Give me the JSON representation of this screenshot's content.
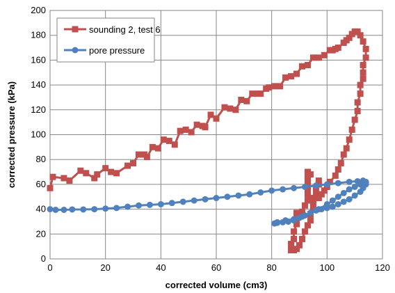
{
  "chart_data": {
    "type": "scatter",
    "title": "",
    "xlabel": "corrected volume (cm3)",
    "ylabel": "corrected pressure (kPa)",
    "xlim": [
      0,
      120
    ],
    "ylim": [
      0,
      200
    ],
    "xticks": [
      0,
      20,
      40,
      60,
      80,
      100,
      120
    ],
    "yticks": [
      0,
      20,
      40,
      60,
      80,
      100,
      120,
      140,
      160,
      180,
      200
    ],
    "grid": true,
    "legend_position": "top-left",
    "series": [
      {
        "name": "sounding 2, test 6",
        "color": "#C0504D",
        "marker": "square",
        "line": true,
        "points": [
          [
            0,
            57
          ],
          [
            1,
            66
          ],
          [
            5,
            65
          ],
          [
            7,
            63
          ],
          [
            11,
            71
          ],
          [
            13,
            69
          ],
          [
            16,
            65
          ],
          [
            17,
            68
          ],
          [
            20,
            73
          ],
          [
            22,
            70
          ],
          [
            24,
            69
          ],
          [
            28,
            75
          ],
          [
            30,
            77
          ],
          [
            32,
            84
          ],
          [
            34,
            84
          ],
          [
            35,
            82
          ],
          [
            37,
            90
          ],
          [
            39,
            89
          ],
          [
            41,
            96
          ],
          [
            43,
            95
          ],
          [
            45,
            92
          ],
          [
            47,
            103
          ],
          [
            49,
            104
          ],
          [
            51,
            102
          ],
          [
            53,
            108
          ],
          [
            55,
            107
          ],
          [
            56,
            106
          ],
          [
            58,
            116
          ],
          [
            60,
            113
          ],
          [
            63,
            122
          ],
          [
            65,
            121
          ],
          [
            67,
            120
          ],
          [
            69,
            128
          ],
          [
            71,
            127
          ],
          [
            73,
            133
          ],
          [
            75,
            133
          ],
          [
            76,
            133
          ],
          [
            78,
            137
          ],
          [
            79,
            138
          ],
          [
            81,
            139
          ],
          [
            83,
            139
          ],
          [
            85,
            146
          ],
          [
            87,
            147
          ],
          [
            89,
            149
          ],
          [
            91,
            155
          ],
          [
            93,
            156
          ],
          [
            95,
            162
          ],
          [
            97,
            162
          ],
          [
            99,
            164
          ],
          [
            101,
            168
          ],
          [
            102,
            168
          ],
          [
            103,
            169
          ],
          [
            104,
            170
          ],
          [
            106,
            174
          ],
          [
            107,
            176
          ],
          [
            108,
            178
          ],
          [
            109,
            181
          ],
          [
            110,
            183
          ],
          [
            111,
            183
          ],
          [
            112,
            180
          ],
          [
            113,
            175
          ],
          [
            114,
            169
          ],
          [
            114,
            162
          ],
          [
            113,
            156
          ],
          [
            113,
            150
          ],
          [
            113,
            145
          ],
          [
            112,
            140
          ],
          [
            112,
            133
          ],
          [
            111,
            126
          ],
          [
            111,
            119
          ],
          [
            110,
            112
          ],
          [
            109,
            104
          ],
          [
            108,
            96
          ],
          [
            107,
            89
          ],
          [
            106,
            84
          ],
          [
            105,
            77
          ],
          [
            104,
            72
          ],
          [
            103,
            67
          ],
          [
            101,
            62
          ],
          [
            100,
            58
          ],
          [
            99,
            55
          ],
          [
            98,
            52
          ],
          [
            97,
            49
          ],
          [
            95,
            47
          ],
          [
            94,
            49
          ],
          [
            93,
            55
          ],
          [
            93,
            61
          ],
          [
            93,
            65
          ],
          [
            93,
            70
          ],
          [
            94,
            68
          ],
          [
            93,
            62
          ],
          [
            93,
            58
          ],
          [
            93,
            52
          ],
          [
            93,
            47
          ],
          [
            92,
            43
          ],
          [
            91,
            38
          ],
          [
            89,
            37
          ],
          [
            89,
            33
          ],
          [
            89,
            28
          ],
          [
            88,
            22
          ],
          [
            88,
            16
          ],
          [
            87,
            12
          ],
          [
            87,
            7
          ],
          [
            88,
            7
          ],
          [
            89,
            8
          ],
          [
            90,
            11
          ],
          [
            91,
            16
          ],
          [
            92,
            22
          ],
          [
            93,
            27
          ],
          [
            94,
            31
          ],
          [
            94,
            36
          ],
          [
            95,
            42
          ],
          [
            95,
            47
          ],
          [
            96,
            51
          ],
          [
            96,
            56
          ],
          [
            97,
            60
          ],
          [
            97,
            63
          ]
        ]
      },
      {
        "name": "pore pressure",
        "color": "#4F81BD",
        "marker": "circle",
        "line": true,
        "points": [
          [
            0,
            40
          ],
          [
            2,
            39.5
          ],
          [
            5,
            39.5
          ],
          [
            8,
            39.8
          ],
          [
            12,
            39.8
          ],
          [
            16,
            40
          ],
          [
            20,
            40.5
          ],
          [
            24,
            41
          ],
          [
            28,
            42
          ],
          [
            32,
            43
          ],
          [
            36,
            43.5
          ],
          [
            40,
            44
          ],
          [
            44,
            45
          ],
          [
            48,
            46
          ],
          [
            52,
            47
          ],
          [
            56,
            48
          ],
          [
            60,
            49
          ],
          [
            64,
            50
          ],
          [
            68,
            51
          ],
          [
            72,
            52
          ],
          [
            76,
            53.5
          ],
          [
            80,
            55
          ],
          [
            84,
            56
          ],
          [
            88,
            57
          ],
          [
            92,
            58
          ],
          [
            96,
            59
          ],
          [
            100,
            60
          ],
          [
            104,
            61
          ],
          [
            108,
            62
          ],
          [
            111,
            62.5
          ],
          [
            113,
            63
          ],
          [
            114,
            62
          ],
          [
            114,
            60
          ],
          [
            113,
            57
          ],
          [
            112,
            54
          ],
          [
            110,
            51
          ],
          [
            108,
            48
          ],
          [
            106,
            46
          ],
          [
            104,
            44
          ],
          [
            102,
            42
          ],
          [
            100,
            41
          ],
          [
            98,
            40
          ],
          [
            96,
            39
          ],
          [
            94,
            37
          ],
          [
            92,
            35
          ],
          [
            90,
            33
          ],
          [
            88,
            31
          ],
          [
            86,
            30
          ],
          [
            84,
            29.5
          ],
          [
            82,
            29
          ],
          [
            81,
            28.5
          ],
          [
            82,
            29.5
          ],
          [
            85,
            31
          ],
          [
            88,
            32
          ],
          [
            91,
            34
          ],
          [
            94,
            37
          ],
          [
            97,
            40
          ],
          [
            100,
            44
          ],
          [
            102,
            47
          ],
          [
            104,
            50
          ],
          [
            106,
            53
          ],
          [
            108,
            56
          ],
          [
            110,
            58
          ],
          [
            112,
            60
          ],
          [
            113,
            61
          ],
          [
            114,
            61.5
          ]
        ]
      }
    ]
  }
}
